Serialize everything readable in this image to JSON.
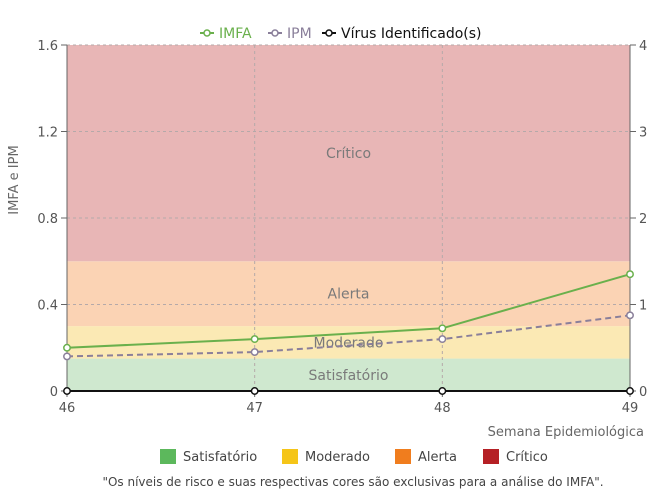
{
  "chart_data": {
    "type": "line",
    "x": [
      46,
      47,
      48,
      49
    ],
    "xlabel": "Semana Epidemiológica",
    "ylabel": "IMFA e IPM",
    "ylim": [
      0,
      1.6
    ],
    "y_ticks": [
      "0",
      "0.4",
      "0.8",
      "1.2",
      "1.6"
    ],
    "y2lim": [
      0,
      4
    ],
    "y2_ticks": [
      "0",
      "1",
      "2",
      "3",
      "4"
    ],
    "grid": true,
    "legend_position": "top",
    "series": [
      {
        "name": "IMFA",
        "values": [
          0.2,
          0.24,
          0.29,
          0.54
        ],
        "color": "#6ab04c",
        "style": "solid",
        "axis": "left"
      },
      {
        "name": "IPM",
        "values": [
          0.16,
          0.18,
          0.24,
          0.35
        ],
        "color": "#8a7f9a",
        "style": "dashed",
        "axis": "left"
      },
      {
        "name": "Vírus Identificado(s)",
        "values": [
          0,
          0,
          0,
          0
        ],
        "color": "#111111",
        "style": "solid",
        "axis": "right"
      }
    ],
    "bands": [
      {
        "label": "Satisfatório",
        "from": 0,
        "to": 0.15,
        "color": "#cfe8cf",
        "show_label": true
      },
      {
        "label": "Moderado",
        "from": 0.15,
        "to": 0.3,
        "color": "#fbe9b4",
        "show_label": true
      },
      {
        "label": "Alerta",
        "from": 0.3,
        "to": 0.6,
        "color": "#fbd3b4",
        "show_label": true
      },
      {
        "label": "Crítico",
        "from": 0.6,
        "to": 1.6,
        "color": "#e8b6b6",
        "show_label": true
      }
    ],
    "risk_legend": [
      {
        "label": "Satisfatório",
        "color": "#5cb85c"
      },
      {
        "label": "Moderado",
        "color": "#f5c518"
      },
      {
        "label": "Alerta",
        "color": "#f07d1e"
      },
      {
        "label": "Crítico",
        "color": "#b52025"
      }
    ],
    "note": "\"Os níveis de risco e suas respectivas cores são exclusivas para a análise do IMFA\"."
  }
}
